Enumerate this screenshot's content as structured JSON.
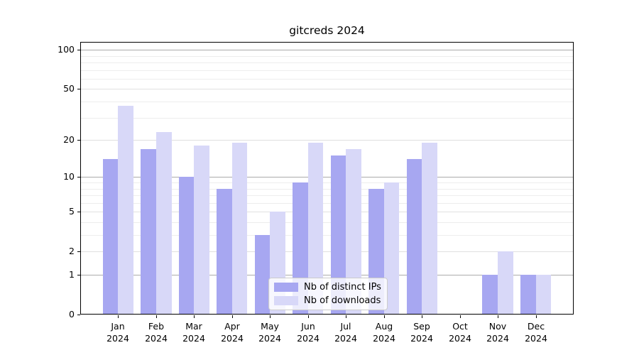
{
  "chart_data": {
    "type": "bar",
    "title": "gitcreds 2024",
    "categories": [
      "Jan",
      "Feb",
      "Mar",
      "Apr",
      "May",
      "Jun",
      "Jul",
      "Aug",
      "Sep",
      "Oct",
      "Nov",
      "Dec"
    ],
    "category_year": "2024",
    "series": [
      {
        "name": "Nb of distinct IPs",
        "color": "#a7a7f1",
        "values": [
          14,
          17,
          10,
          8,
          3,
          9,
          15,
          8,
          14,
          0,
          1,
          1
        ]
      },
      {
        "name": "Nb of downloads",
        "color": "#d8d8f8",
        "values": [
          37,
          23,
          18,
          19,
          5,
          19,
          17,
          9,
          19,
          0,
          2,
          1
        ]
      }
    ],
    "yscale": "log1p",
    "ylim": [
      0,
      115
    ],
    "yticks": [
      100,
      50,
      20,
      10,
      5,
      2,
      1,
      0
    ],
    "decade_gridlines": [
      1,
      10,
      100
    ],
    "labeled_gridlines": [
      2,
      5,
      20,
      50
    ],
    "minor_gridlines": [
      3,
      4,
      6,
      7,
      8,
      9,
      30,
      40,
      60,
      70,
      80,
      90
    ],
    "grid": "horizontal",
    "legend_position": "inside-bottom-center",
    "colors": {
      "decade_grid": "#ababab",
      "labeled_grid": "#e0e0e0",
      "minor_grid": "#ededed",
      "axis": "#000000",
      "text": "#000000",
      "legend_border": "#cccccc",
      "legend_bg": "rgba(255,255,255,0.8)"
    }
  }
}
